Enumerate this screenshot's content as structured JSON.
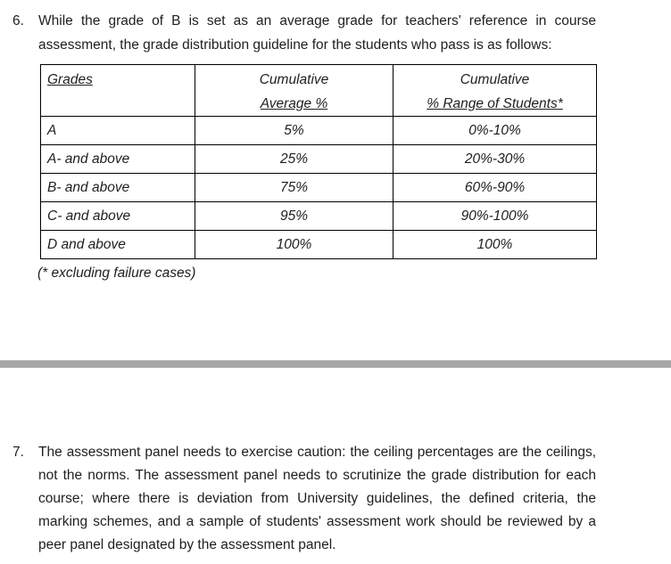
{
  "page": {
    "background_color": "#ffffff",
    "text_color": "#1f1f1f",
    "divider_color": "#a6a6a6",
    "table_border_color": "#000000"
  },
  "item6": {
    "number": "6.",
    "paragraph": "While the grade of B is set as an average grade for teachers' reference in course assessment, the grade distribution guideline for the students who pass is as follows:",
    "table": {
      "headers": [
        {
          "line1": "Grades",
          "line2": ""
        },
        {
          "line1": "Cumulative",
          "line2": "Average %"
        },
        {
          "line1": "Cumulative",
          "line2": "% Range of Students*"
        }
      ],
      "rows": [
        [
          "A",
          "5%",
          "0%-10%"
        ],
        [
          "A- and above",
          "25%",
          "20%-30%"
        ],
        [
          "B- and above",
          "75%",
          "60%-90%"
        ],
        [
          "C- and above",
          "95%",
          "90%-100%"
        ],
        [
          "D and above",
          "100%",
          "100%"
        ]
      ]
    },
    "footnote": "(* excluding failure cases)"
  },
  "item7": {
    "number": "7.",
    "paragraph": "The assessment panel needs to exercise caution: the ceiling percentages are the ceilings, not the norms. The assessment panel needs to scrutinize the grade distribution for each course; where there is deviation from University guidelines, the defined criteria, the marking schemes, and a sample of students' assessment work should be reviewed by a peer panel designated by the assessment panel."
  }
}
